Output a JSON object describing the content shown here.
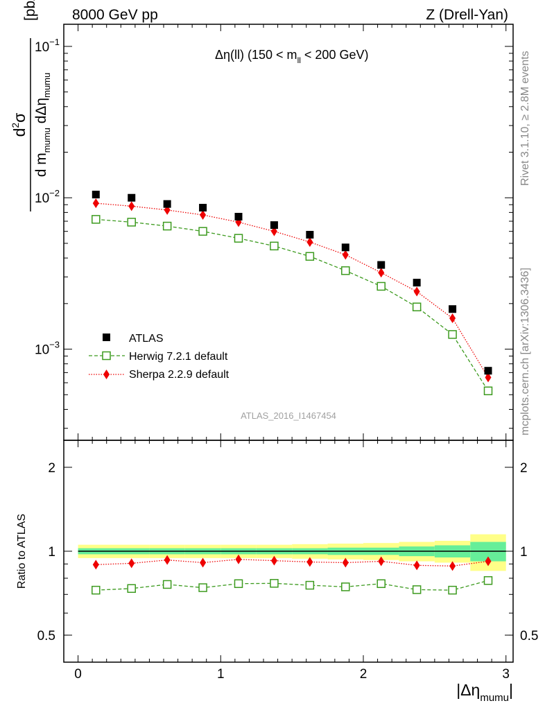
{
  "header": {
    "left": "8000 GeV pp",
    "right": "Z (Drell-Yan)"
  },
  "side_labels": {
    "rivet": "Rivet 3.1.10, ≥ 2.8M events",
    "mcplots": "mcplots.cern.ch [arXiv:1306.3436]"
  },
  "watermark": "ATLAS_2016_I1467454",
  "chart_data": [
    {
      "type": "scatter",
      "panel": "main",
      "title_parts": {
        "pre": "Δη(ll) (150 < m",
        "sub": "ll",
        "post": " < 200 GeV)"
      },
      "ylabel_parts": {
        "num_pre": "d",
        "num_sup": "2",
        "num_post": "σ",
        "den_a": "d m",
        "den_a_sub": "mumu",
        "den_b": " dΔη",
        "den_b_sub": "mumu",
        "unit": "[pb/GeV]"
      },
      "yscale": "log",
      "ylim": [
        0.00025,
        0.14
      ],
      "yticks": [
        {
          "value": 0.1,
          "base": "10",
          "exp": "−1"
        },
        {
          "value": 0.01,
          "base": "10",
          "exp": "−2"
        },
        {
          "value": 0.001,
          "base": "10",
          "exp": "−3"
        }
      ],
      "xlim": [
        -0.1,
        3.05
      ],
      "x": [
        0.125,
        0.375,
        0.625,
        0.875,
        1.125,
        1.375,
        1.625,
        1.875,
        2.125,
        2.375,
        2.625,
        2.875
      ],
      "series": [
        {
          "name": "ATLAS",
          "color": "#000000",
          "marker": "square",
          "line": "none",
          "values": [
            0.0105,
            0.01,
            0.0091,
            0.0086,
            0.0075,
            0.0066,
            0.0057,
            0.0047,
            0.0036,
            0.00275,
            0.00184,
            0.00072
          ]
        },
        {
          "name": "Herwig 7.2.1 default",
          "color": "#3c9a1e",
          "marker": "open-square",
          "line": "dashed",
          "values": [
            0.0072,
            0.0069,
            0.0065,
            0.006,
            0.0054,
            0.0048,
            0.0041,
            0.0033,
            0.0026,
            0.0019,
            0.00125,
            0.00053
          ]
        },
        {
          "name": "Sherpa 2.2.9 default",
          "color": "#ee0000",
          "marker": "diamond",
          "line": "dotted",
          "values": [
            0.0092,
            0.0088,
            0.0083,
            0.0077,
            0.0069,
            0.006,
            0.0051,
            0.0042,
            0.0032,
            0.0024,
            0.0016,
            0.00065
          ]
        }
      ],
      "legend_position": "lower-left"
    },
    {
      "type": "scatter",
      "panel": "ratio",
      "ylabel": "Ratio to ATLAS",
      "xlabel_parts": {
        "pre": "|Δη",
        "sub": "mumu",
        "post": "|"
      },
      "yscale": "log",
      "ylim": [
        0.4,
        2.5
      ],
      "yticks": [
        {
          "value": 0.5,
          "label": "0.5"
        },
        {
          "value": 1,
          "label": "1"
        },
        {
          "value": 2,
          "label": "2"
        }
      ],
      "xticks": [
        {
          "value": 0,
          "label": "0"
        },
        {
          "value": 1,
          "label": "1"
        },
        {
          "value": 2,
          "label": "2"
        },
        {
          "value": 3,
          "label": "3"
        }
      ],
      "band_edges": [
        0,
        0.25,
        0.5,
        0.75,
        1.0,
        1.25,
        1.5,
        1.75,
        2.0,
        2.25,
        2.5,
        2.75,
        3.0
      ],
      "stat_band": [
        0.025,
        0.025,
        0.025,
        0.025,
        0.025,
        0.025,
        0.025,
        0.03,
        0.03,
        0.04,
        0.05,
        0.08
      ],
      "total_band": [
        0.055,
        0.055,
        0.055,
        0.055,
        0.055,
        0.055,
        0.06,
        0.065,
        0.07,
        0.08,
        0.09,
        0.15
      ],
      "stat_color": "#66ee99",
      "total_color": "#ffff88",
      "series": [
        {
          "name": "Herwig 7.2.1 default",
          "color": "#3c9a1e",
          "marker": "open-square",
          "line": "dashed",
          "values": [
            0.725,
            0.735,
            0.76,
            0.74,
            0.765,
            0.767,
            0.755,
            0.745,
            0.765,
            0.728,
            0.725,
            0.785
          ]
        },
        {
          "name": "Sherpa 2.2.9 default",
          "color": "#ee0000",
          "marker": "diamond",
          "line": "dotted",
          "values": [
            0.895,
            0.905,
            0.93,
            0.91,
            0.935,
            0.925,
            0.915,
            0.91,
            0.92,
            0.89,
            0.885,
            0.92
          ]
        }
      ]
    }
  ]
}
